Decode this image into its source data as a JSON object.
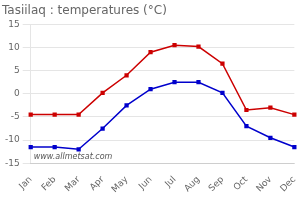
{
  "chart_data": {
    "type": "line",
    "title": "Tasiilaq : temperatures (°C)",
    "categories": [
      "Jan",
      "Feb",
      "Mar",
      "Apr",
      "May",
      "Jun",
      "Jul",
      "Aug",
      "Sep",
      "Oct",
      "Nov",
      "Dec"
    ],
    "series": [
      {
        "color": "#cc0000",
        "marker": "square",
        "values": [
          -4.5,
          -4.5,
          -4.5,
          0.2,
          4.0,
          9.0,
          10.5,
          10.2,
          6.5,
          -3.5,
          -3.0,
          -4.5
        ]
      },
      {
        "color": "#0000cc",
        "marker": "square",
        "values": [
          -11.5,
          -11.5,
          -12.0,
          -7.5,
          -2.5,
          1.0,
          2.5,
          2.5,
          0.2,
          -7.0,
          -9.5,
          -11.5
        ]
      }
    ],
    "ylim": [
      -15,
      15
    ],
    "yticks": [
      -15,
      -10,
      -5,
      0,
      5,
      10,
      15
    ],
    "grid": "y",
    "annotations": [
      "www.allmetsat.com"
    ]
  }
}
